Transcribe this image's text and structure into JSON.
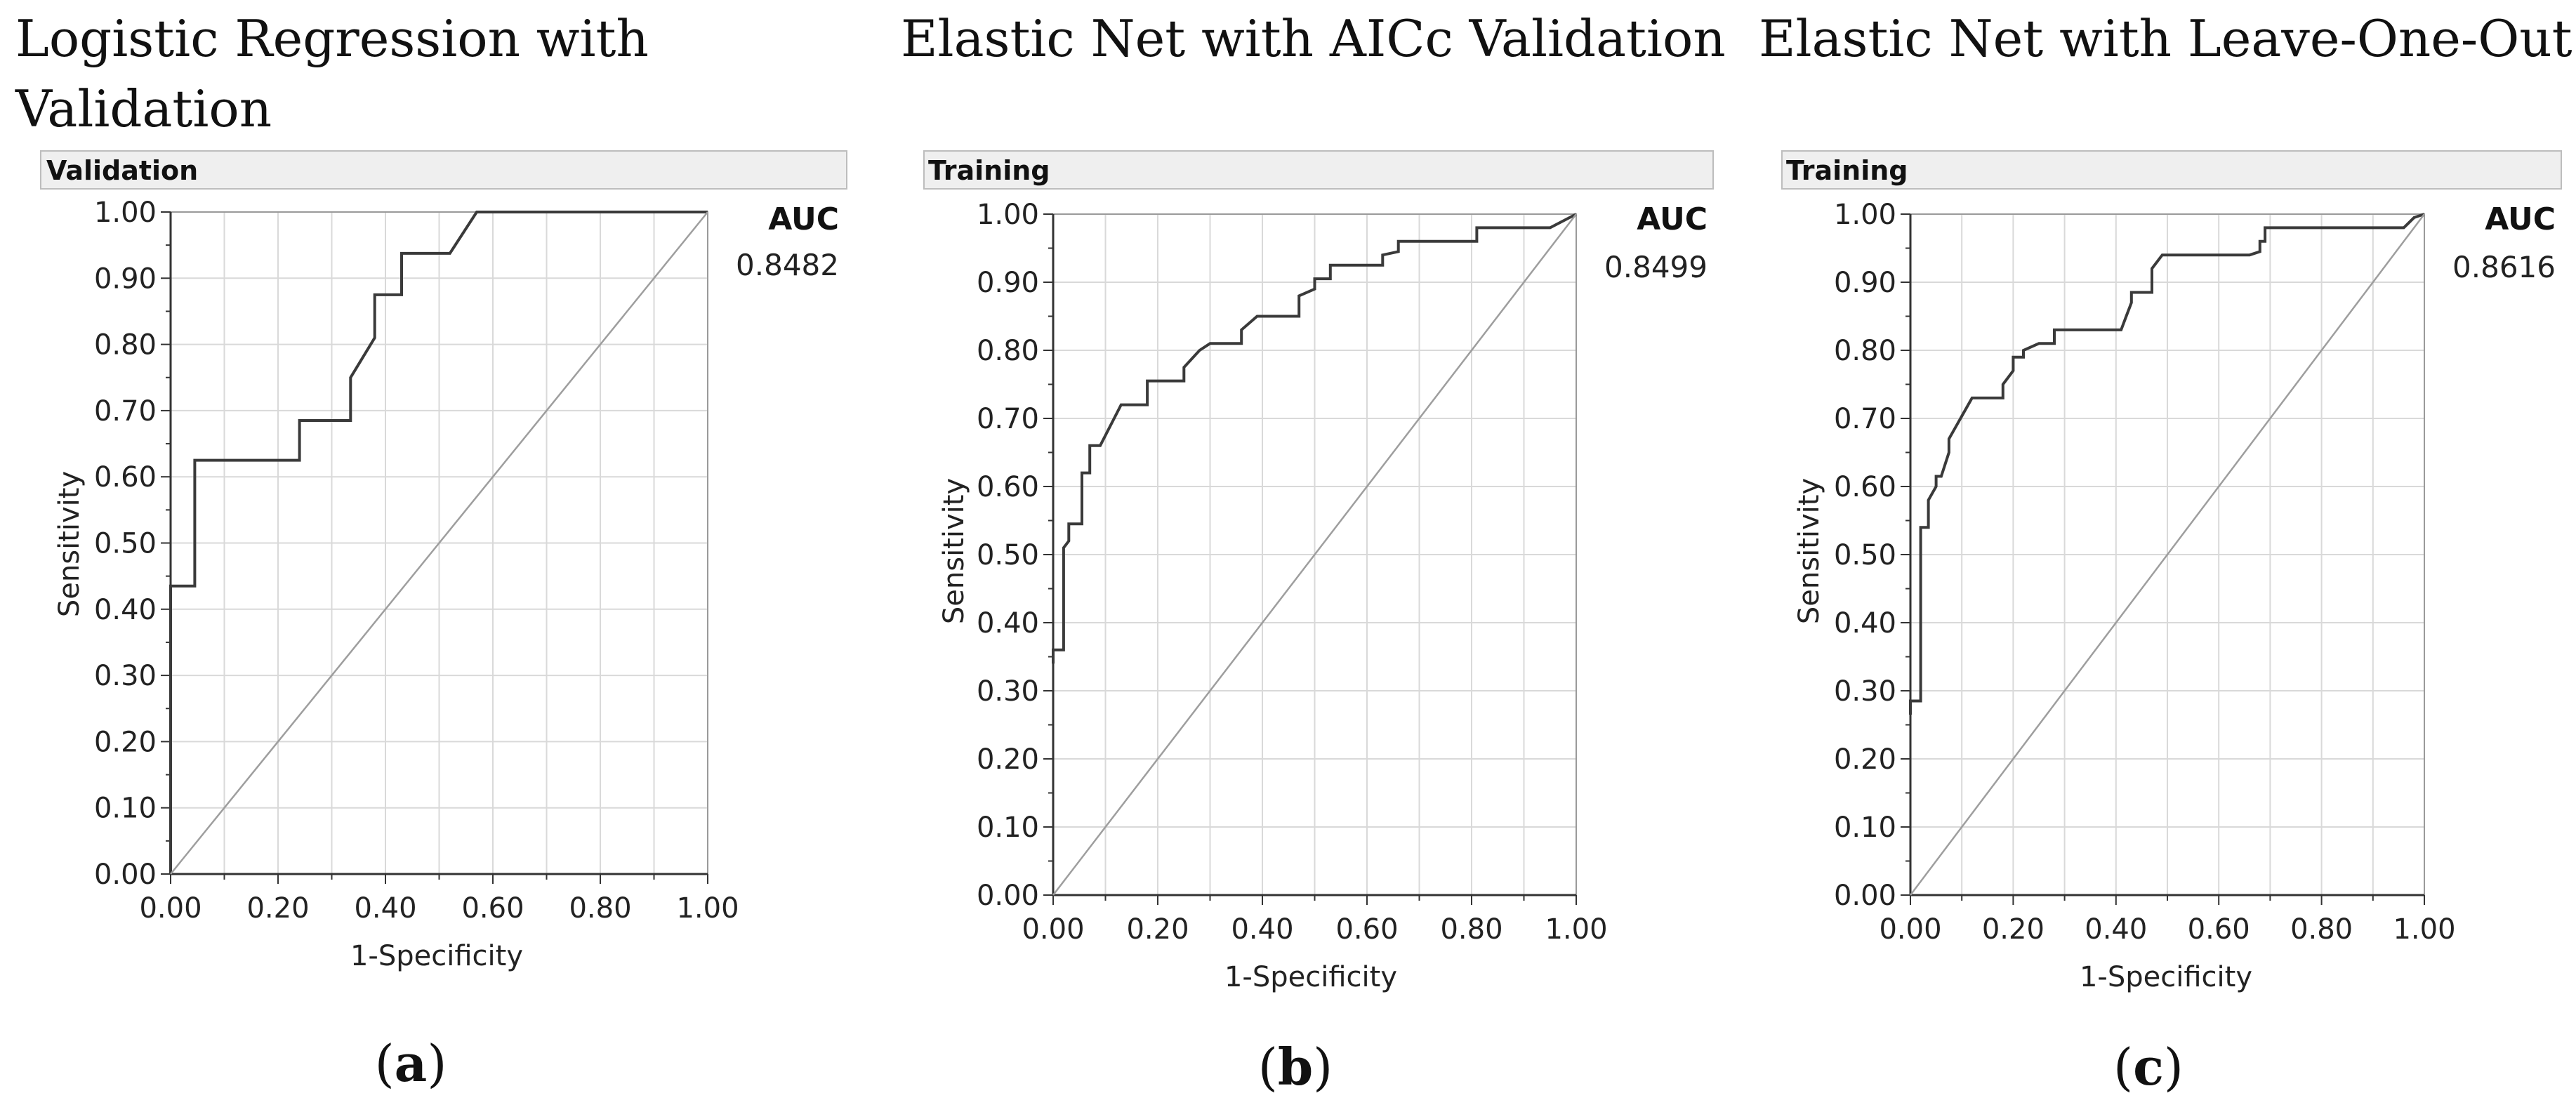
{
  "chart_data": [
    {
      "type": "line",
      "panel_title": "Logistic Regression with Validation",
      "header": "Validation",
      "caption_letter": "a",
      "xlabel": "1-Specificity",
      "ylabel": "Sensitivity",
      "xlim": [
        0,
        1
      ],
      "ylim": [
        0,
        1
      ],
      "grid": true,
      "x_ticks": [
        "0.00",
        "0.20",
        "0.40",
        "0.60",
        "0.80",
        "1.00"
      ],
      "y_ticks": [
        "0.00",
        "0.10",
        "0.20",
        "0.30",
        "0.40",
        "0.50",
        "0.60",
        "0.70",
        "0.80",
        "0.90",
        "1.00"
      ],
      "auc_label": "AUC",
      "auc_value": "0.8482",
      "series": [
        {
          "name": "ROC",
          "x": [
            0,
            0,
            0.045,
            0.045,
            0.24,
            0.24,
            0.335,
            0.335,
            0.38,
            0.38,
            0.43,
            0.43,
            0.52,
            0.57,
            1.0
          ],
          "y": [
            0,
            0.435,
            0.435,
            0.625,
            0.625,
            0.685,
            0.685,
            0.75,
            0.81,
            0.875,
            0.875,
            0.9375,
            0.9375,
            1.0,
            1.0
          ]
        },
        {
          "name": "Reference",
          "x": [
            0,
            1
          ],
          "y": [
            0,
            1
          ]
        }
      ]
    },
    {
      "type": "line",
      "panel_title": "Elastic Net with AICc Validation",
      "header": "Training",
      "caption_letter": "b",
      "xlabel": "1-Specificity",
      "ylabel": "Sensitivity",
      "xlim": [
        0,
        1
      ],
      "ylim": [
        0,
        1
      ],
      "grid": true,
      "x_ticks": [
        "0.00",
        "0.20",
        "0.40",
        "0.60",
        "0.80",
        "1.00"
      ],
      "y_ticks": [
        "0.00",
        "0.10",
        "0.20",
        "0.30",
        "0.40",
        "0.50",
        "0.60",
        "0.70",
        "0.80",
        "0.90",
        "1.00"
      ],
      "auc_label": "AUC",
      "auc_value": "0.8499",
      "series": [
        {
          "name": "ROC",
          "x": [
            0,
            0,
            0.02,
            0.02,
            0.03,
            0.03,
            0.055,
            0.055,
            0.07,
            0.07,
            0.09,
            0.13,
            0.13,
            0.18,
            0.18,
            0.25,
            0.25,
            0.28,
            0.3,
            0.36,
            0.36,
            0.39,
            0.47,
            0.47,
            0.5,
            0.5,
            0.53,
            0.53,
            0.63,
            0.63,
            0.66,
            0.66,
            0.81,
            0.81,
            0.95,
            1.0
          ],
          "y": [
            0.34,
            0.36,
            0.36,
            0.51,
            0.52,
            0.545,
            0.545,
            0.62,
            0.62,
            0.66,
            0.66,
            0.72,
            0.72,
            0.72,
            0.755,
            0.755,
            0.775,
            0.8,
            0.81,
            0.81,
            0.83,
            0.85,
            0.85,
            0.88,
            0.89,
            0.905,
            0.905,
            0.925,
            0.925,
            0.94,
            0.945,
            0.96,
            0.96,
            0.98,
            0.98,
            1.0
          ]
        },
        {
          "name": "Reference",
          "x": [
            0,
            1
          ],
          "y": [
            0,
            1
          ]
        }
      ]
    },
    {
      "type": "line",
      "panel_title": "Elastic Net with Leave-One-Out",
      "header": "Training",
      "caption_letter": "c",
      "xlabel": "1-Specificity",
      "ylabel": "Sensitivity",
      "xlim": [
        0,
        1
      ],
      "ylim": [
        0,
        1
      ],
      "grid": true,
      "x_ticks": [
        "0.00",
        "0.20",
        "0.40",
        "0.60",
        "0.80",
        "1.00"
      ],
      "y_ticks": [
        "0.00",
        "0.10",
        "0.20",
        "0.30",
        "0.40",
        "0.50",
        "0.60",
        "0.70",
        "0.80",
        "0.90",
        "1.00"
      ],
      "auc_label": "AUC",
      "auc_value": "0.8616",
      "series": [
        {
          "name": "ROC",
          "x": [
            0,
            0,
            0.02,
            0.02,
            0.035,
            0.035,
            0.05,
            0.05,
            0.06,
            0.075,
            0.075,
            0.09,
            0.12,
            0.12,
            0.18,
            0.18,
            0.2,
            0.2,
            0.22,
            0.22,
            0.25,
            0.28,
            0.28,
            0.41,
            0.42,
            0.43,
            0.43,
            0.47,
            0.47,
            0.49,
            0.66,
            0.68,
            0.68,
            0.69,
            0.69,
            0.96,
            0.98,
            1.0
          ],
          "y": [
            0.265,
            0.285,
            0.285,
            0.54,
            0.54,
            0.58,
            0.6,
            0.615,
            0.615,
            0.65,
            0.67,
            0.69,
            0.73,
            0.73,
            0.73,
            0.75,
            0.77,
            0.79,
            0.79,
            0.8,
            0.81,
            0.81,
            0.83,
            0.83,
            0.85,
            0.87,
            0.885,
            0.885,
            0.92,
            0.94,
            0.94,
            0.945,
            0.96,
            0.96,
            0.98,
            0.98,
            0.995,
            1.0
          ]
        },
        {
          "name": "Reference",
          "x": [
            0,
            1
          ],
          "y": [
            0,
            1
          ]
        }
      ]
    }
  ]
}
